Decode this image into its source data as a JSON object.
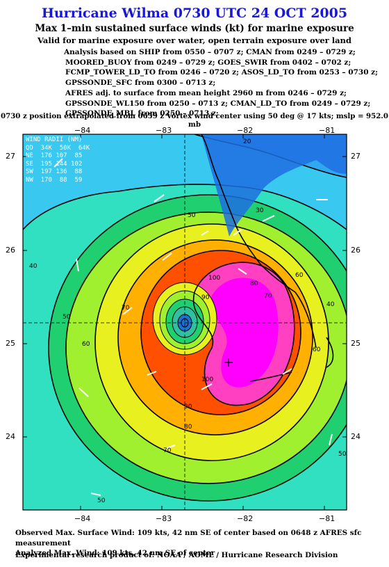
{
  "title": "Hurricane Wilma 0730 UTC 24 OCT 2005",
  "subtitle": "Max 1–min sustained surface winds (kt) for marine exposure",
  "subtitle2": "Valid for marine exposure over water, open terrain exposure over land",
  "analysis_lines": [
    "Analysis based on  SHIP from 0550 – 0707 z;  CMAN from 0249 – 0729 z;",
    "MOORED_BUOY from 0249 – 0729 z;  GOES_SWIR from 0402 – 0702 z;",
    "FCMP_TOWER_LD_TO from 0246 – 0720 z;  ASOS_LD_TO from 0253 – 0730 z;",
    "GPSSONDE_SFC from 0300 – 0713 z;",
    "AFRES adj. to surface from mean height 2960 m from 0246 – 0729 z;",
    "GPSSONDE_WL150 from 0250 – 0713 z;  CMAN_LD_TO from 0249 – 0729 z;",
    "GPSSONDE_MBL from 0250 – 0713 z;"
  ],
  "position_line": "0730 z position extrapolated from 0659 z Vortex wind center using 50 deg @ 17 kts; mslp = 952.0 mb",
  "axes": {
    "lon_ticks": [
      "−84",
      "−83",
      "−82",
      "−81"
    ],
    "lat_ticks": [
      "27",
      "26",
      "25",
      "24"
    ]
  },
  "wind_radii": {
    "header": "WIND RADII (NM)",
    "columns": "QD  34K  50K  64K",
    "rows": [
      "NE  176 107  85",
      "SE  195 144 102",
      "SW  197 136  88",
      "NW  170  88  59"
    ]
  },
  "contour_labels": [
    "20",
    "30",
    "40",
    "50",
    "50",
    "60",
    "60",
    "70",
    "70",
    "70",
    "80",
    "80",
    "90",
    "90",
    "100",
    "100",
    "60",
    "50",
    "40",
    "50"
  ],
  "footer_lines": [
    "Observed Max. Surface Wind: 109 kts, 42 nm SE of center based on 0648 z AFRES sfc measurement",
    "Analyzed Max. Wind: 109 kts, 42 nm SE of center"
  ],
  "credit": "Experimental research product of:  NOAA / AOML / Hurricane Research Division",
  "colors": {
    "title": "#1919d2",
    "land_blue": "#1f6fe0",
    "speed_20": "#2fa8f0",
    "speed_30": "#38c8f0",
    "speed_40": "#30e0c0",
    "speed_50": "#20d070",
    "speed_60": "#a0f030",
    "speed_70": "#e8f020",
    "speed_80": "#ffb000",
    "speed_90": "#ff5000",
    "speed_100": "#ff40c0",
    "max": "#ff00ff"
  }
}
